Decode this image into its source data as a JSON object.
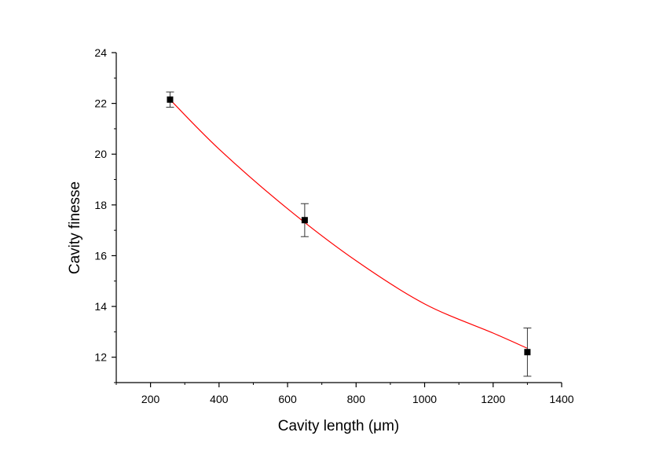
{
  "chart_data": {
    "type": "scatter",
    "title": "",
    "xlabel": "Cavity length (μm)",
    "ylabel": "Cavity finesse",
    "xlim": [
      100,
      1400
    ],
    "ylim": [
      11,
      24
    ],
    "x_ticks": [
      200,
      400,
      600,
      800,
      1000,
      1200,
      1400
    ],
    "y_ticks": [
      12,
      14,
      16,
      18,
      20,
      22,
      24
    ],
    "x_tick_labels": [
      "200",
      "400",
      "600",
      "800",
      "1000",
      "1200",
      "1400"
    ],
    "y_tick_labels": [
      "12",
      "14",
      "16",
      "18",
      "20",
      "22",
      "24"
    ],
    "grid": false,
    "legend": "none",
    "series": [
      {
        "type": "scatter",
        "marker": "square",
        "color": "#000000",
        "x": [
          257,
          650,
          1300
        ],
        "y": [
          22.15,
          17.4,
          12.2
        ],
        "y_error": [
          0.3,
          0.65,
          0.95
        ]
      },
      {
        "type": "line",
        "color": "#ff0000",
        "x": [
          257,
          400,
          600,
          800,
          1000,
          1200,
          1300
        ],
        "y": [
          22.15,
          20.2,
          17.85,
          15.8,
          14.1,
          12.95,
          12.35
        ]
      }
    ]
  }
}
